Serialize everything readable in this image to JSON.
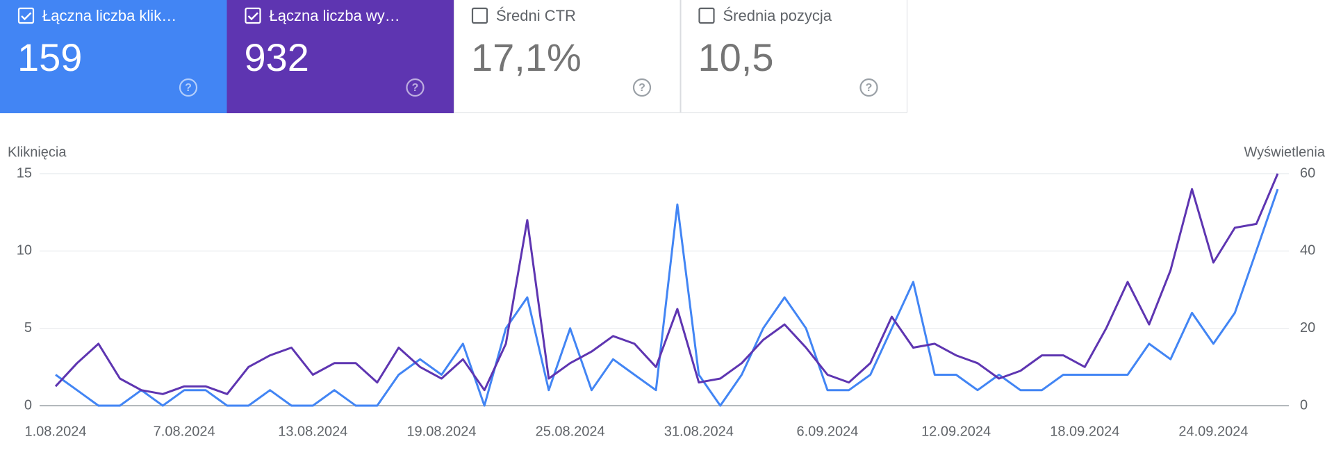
{
  "metrics": [
    {
      "label": "Łączna liczba klik…",
      "value": "159",
      "checked": true,
      "bg": "#4285f4",
      "fg": "#ffffff"
    },
    {
      "label": "Łączna liczba wy…",
      "value": "932",
      "checked": true,
      "bg": "#5e35b1",
      "fg": "#ffffff"
    },
    {
      "label": "Średni CTR",
      "value": "17,1%",
      "checked": false,
      "bg": "#ffffff",
      "fg": "#5f6368"
    },
    {
      "label": "Średnia pozycja",
      "value": "10,5",
      "checked": false,
      "bg": "#ffffff",
      "fg": "#5f6368"
    }
  ],
  "chart_data": {
    "type": "line",
    "ylabel": "Kliknięcia",
    "y2label": "Wyświetlenia",
    "grid": true,
    "categories": [
      "1.08.2024",
      null,
      null,
      null,
      null,
      null,
      "7.08.2024",
      null,
      null,
      null,
      null,
      null,
      "13.08.2024",
      null,
      null,
      null,
      null,
      null,
      "19.08.2024",
      null,
      null,
      null,
      null,
      null,
      "25.08.2024",
      null,
      null,
      null,
      null,
      null,
      "31.08.2024",
      null,
      null,
      null,
      null,
      null,
      "6.09.2024",
      null,
      null,
      null,
      null,
      null,
      "12.09.2024",
      null,
      null,
      null,
      null,
      null,
      "18.09.2024",
      null,
      null,
      null,
      null,
      null,
      "24.09.2024",
      null,
      null,
      null
    ],
    "ylim": [
      0,
      15
    ],
    "yticks": [
      0,
      5,
      10,
      15
    ],
    "y2lim": [
      0,
      60
    ],
    "y2ticks": [
      0,
      20,
      40,
      60
    ],
    "series": [
      {
        "color": "#4285f4",
        "axis": "y",
        "values": [
          2,
          1,
          0,
          0,
          1,
          0,
          1,
          1,
          0,
          0,
          1,
          0,
          0,
          1,
          0,
          0,
          2,
          3,
          2,
          4,
          0,
          5,
          7,
          1,
          5,
          1,
          3,
          2,
          1,
          13,
          2,
          0,
          2,
          5,
          7,
          5,
          1,
          1,
          2,
          5,
          8,
          2,
          2,
          1,
          2,
          1,
          1,
          2,
          2,
          2,
          2,
          4,
          3,
          6,
          4,
          6,
          10,
          14
        ]
      },
      {
        "color": "#5e35b1",
        "axis": "y2",
        "values": [
          5,
          11,
          16,
          7,
          4,
          3,
          5,
          5,
          3,
          10,
          13,
          15,
          8,
          11,
          11,
          6,
          15,
          10,
          7,
          12,
          4,
          16,
          48,
          7,
          11,
          14,
          18,
          16,
          10,
          25,
          6,
          7,
          11,
          17,
          21,
          15,
          8,
          6,
          11,
          23,
          15,
          16,
          13,
          11,
          7,
          9,
          13,
          13,
          10,
          20,
          32,
          21,
          35,
          56,
          37,
          46,
          47,
          60
        ]
      }
    ]
  }
}
